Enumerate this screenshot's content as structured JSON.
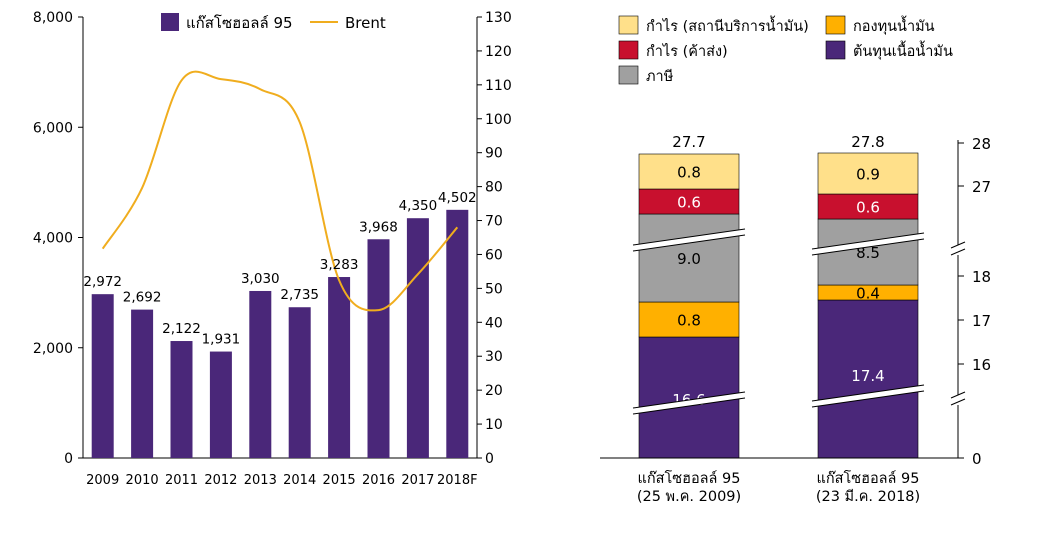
{
  "chart_data": [
    {
      "type": "bar",
      "categories": [
        "2009",
        "2010",
        "2011",
        "2012",
        "2013",
        "2014",
        "2015",
        "2016",
        "2017",
        "2018F"
      ],
      "series": [
        {
          "name": "แก๊สโซฮอลล์ 95",
          "axis": "left",
          "type": "bar",
          "color": "#4a2779",
          "values": [
            2972,
            2692,
            2122,
            1931,
            3030,
            2735,
            3283,
            3968,
            4350,
            4502
          ],
          "labels": [
            "2,972",
            "2,692",
            "2,122",
            "1,931",
            "3,030",
            "2,735",
            "3,283",
            "3,968",
            "4,350",
            "4,502"
          ]
        },
        {
          "name": "Brent",
          "axis": "right",
          "type": "line",
          "color": "#f0ad1e",
          "values": [
            61.7,
            79.6,
            111.3,
            111.7,
            108.7,
            99.0,
            52.4,
            43.6,
            54.2,
            68.0
          ]
        }
      ],
      "y_left": {
        "ticks": [
          "0",
          "2,000",
          "4,000",
          "6,000",
          "8,000"
        ],
        "ylim": [
          0,
          8000
        ]
      },
      "y_right": {
        "ticks": [
          "0",
          "10",
          "20",
          "30",
          "40",
          "50",
          "60",
          "70",
          "80",
          "90",
          "100",
          "110",
          "120",
          "130"
        ],
        "ylim": [
          0,
          130
        ]
      },
      "legend_position": "top"
    },
    {
      "type": "bar",
      "stacked": true,
      "categories": [
        "แก๊สโซฮอลล์ 95|(25 พ.ค. 2009)",
        "แก๊สโซฮอลล์ 95|(23 มี.ค. 2018)"
      ],
      "category_lines": [
        [
          "แก๊สโซฮอลล์ 95",
          "(25 พ.ค. 2009)"
        ],
        [
          "แก๊สโซฮอลล์ 95",
          "(23 มี.ค. 2018)"
        ]
      ],
      "series": [
        {
          "name": "ต้นทุนเนื้อน้ำมัน",
          "color": "#4a2779",
          "values": [
            16.6,
            17.4
          ],
          "labels": [
            "16.6",
            "17.4"
          ]
        },
        {
          "name": "กองทุนน้ำมัน",
          "color": "#ffb000",
          "values": [
            0.8,
            0.4
          ],
          "labels": [
            "0.8",
            "0.4"
          ]
        },
        {
          "name": "ภาษี",
          "color": "#a0a0a0",
          "values": [
            9.0,
            8.5
          ],
          "labels": [
            "9.0",
            "8.5"
          ]
        },
        {
          "name": "กำไร (ค้าส่ง)",
          "color": "#c8102e",
          "values": [
            0.6,
            0.6
          ],
          "labels": [
            "0.6",
            "0.6"
          ]
        },
        {
          "name": "กำไร (สถานีบริการน้ำมัน)",
          "color": "#ffe08a",
          "values": [
            0.8,
            0.9
          ],
          "labels": [
            "0.8",
            "0.9"
          ]
        }
      ],
      "totals": [
        "27.7",
        "27.8"
      ],
      "y_right": {
        "ticks": [
          "0",
          "16",
          "17",
          "18",
          "27",
          "28"
        ],
        "broken_axis": true
      },
      "legend_position": "top"
    }
  ]
}
